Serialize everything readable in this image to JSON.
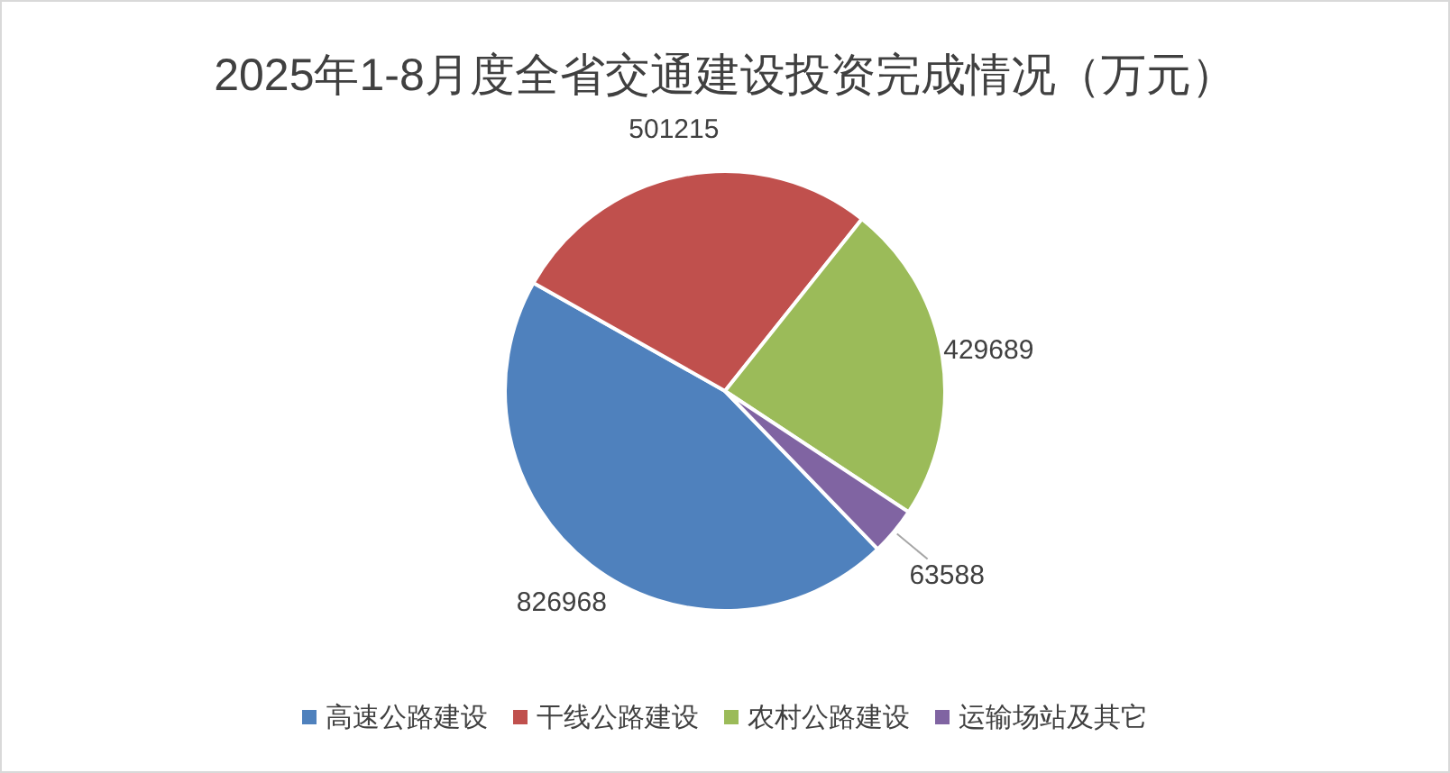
{
  "chart_data": {
    "type": "pie",
    "title": "2025年1-8月度全省交通建设投资完成情况（万元）",
    "categories": [
      "高速公路建设",
      "干线公路建设",
      "农村公路建设",
      "运输场站及其它"
    ],
    "values": [
      826968,
      501215,
      429689,
      63588
    ],
    "colors": [
      "#4f81bd",
      "#c0504d",
      "#9bbb59",
      "#8064a2"
    ],
    "data_labels": true,
    "legend": "bottom"
  }
}
